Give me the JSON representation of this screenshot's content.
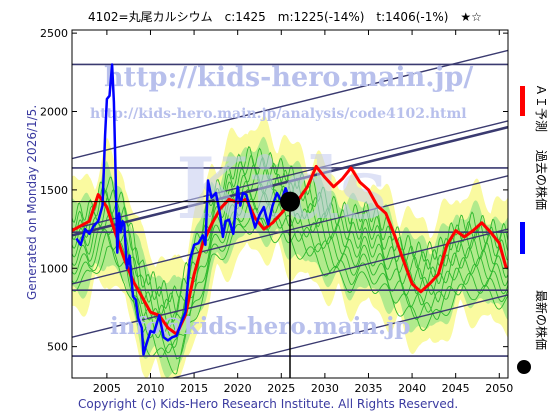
{
  "chart_data": {
    "type": "line",
    "title": "4102=丸尾カルシウム　c:1425　m:1225(-14%)　t:1406(-1%)　★☆",
    "xlim": [
      2001,
      2051
    ],
    "ylim": [
      300,
      2520
    ],
    "x_ticks": [
      2005,
      2010,
      2015,
      2020,
      2025,
      2030,
      2035,
      2040,
      2045,
      2050
    ],
    "y_ticks": [
      500,
      1000,
      1500,
      2000,
      2500
    ],
    "current_marker": {
      "x": 2026.0,
      "y": 1425
    },
    "series": [
      {
        "name": "AI予測",
        "color": "#ff0000",
        "points": [
          [
            2001,
            1240
          ],
          [
            2003,
            1300
          ],
          [
            2004,
            1470
          ],
          [
            2005,
            1390
          ],
          [
            2006,
            1220
          ],
          [
            2007,
            1060
          ],
          [
            2008,
            920
          ],
          [
            2009,
            820
          ],
          [
            2010,
            720
          ],
          [
            2011,
            700
          ],
          [
            2012,
            620
          ],
          [
            2013,
            580
          ],
          [
            2014,
            700
          ],
          [
            2015,
            960
          ],
          [
            2016,
            1160
          ],
          [
            2017,
            1280
          ],
          [
            2018,
            1380
          ],
          [
            2019,
            1440
          ],
          [
            2020,
            1420
          ],
          [
            2021,
            1440
          ],
          [
            2022,
            1320
          ],
          [
            2023,
            1250
          ],
          [
            2024,
            1290
          ],
          [
            2025,
            1350
          ],
          [
            2026,
            1420
          ],
          [
            2027,
            1440
          ],
          [
            2028,
            1520
          ],
          [
            2029,
            1650
          ],
          [
            2030,
            1580
          ],
          [
            2031,
            1520
          ],
          [
            2032,
            1570
          ],
          [
            2033,
            1640
          ],
          [
            2034,
            1550
          ],
          [
            2035,
            1500
          ],
          [
            2036,
            1400
          ],
          [
            2037,
            1350
          ],
          [
            2038,
            1210
          ],
          [
            2039,
            1050
          ],
          [
            2040,
            900
          ],
          [
            2041,
            850
          ],
          [
            2042,
            900
          ],
          [
            2043,
            960
          ],
          [
            2044,
            1150
          ],
          [
            2045,
            1240
          ],
          [
            2046,
            1200
          ],
          [
            2047,
            1240
          ],
          [
            2048,
            1290
          ],
          [
            2049,
            1230
          ],
          [
            2050,
            1160
          ],
          [
            2050.8,
            1000
          ]
        ]
      },
      {
        "name": "過去の株価",
        "color": "#0000ff",
        "points": [
          [
            2001.5,
            1190
          ],
          [
            2002,
            1150
          ],
          [
            2002.5,
            1250
          ],
          [
            2003,
            1220
          ],
          [
            2003.5,
            1270
          ],
          [
            2004,
            1300
          ],
          [
            2004.5,
            1400
          ],
          [
            2004.8,
            1850
          ],
          [
            2005,
            2080
          ],
          [
            2005.3,
            2100
          ],
          [
            2005.6,
            2300
          ],
          [
            2005.8,
            2060
          ],
          [
            2006,
            1600
          ],
          [
            2006.2,
            1100
          ],
          [
            2006.4,
            1350
          ],
          [
            2006.6,
            1230
          ],
          [
            2006.8,
            1300
          ],
          [
            2007,
            1280
          ],
          [
            2007.3,
            1000
          ],
          [
            2007.6,
            1080
          ],
          [
            2008,
            820
          ],
          [
            2008.3,
            800
          ],
          [
            2008.6,
            680
          ],
          [
            2009,
            620
          ],
          [
            2009.2,
            450
          ],
          [
            2009.5,
            510
          ],
          [
            2010,
            600
          ],
          [
            2010.4,
            590
          ],
          [
            2011,
            700
          ],
          [
            2011.5,
            560
          ],
          [
            2012,
            540
          ],
          [
            2012.5,
            560
          ],
          [
            2013,
            570
          ],
          [
            2013.5,
            650
          ],
          [
            2014,
            720
          ],
          [
            2014.5,
            1050
          ],
          [
            2015,
            1150
          ],
          [
            2015.5,
            1160
          ],
          [
            2016,
            1210
          ],
          [
            2016.3,
            1150
          ],
          [
            2016.6,
            1560
          ],
          [
            2017,
            1450
          ],
          [
            2017.5,
            1480
          ],
          [
            2018,
            1340
          ],
          [
            2018.3,
            1200
          ],
          [
            2018.6,
            1300
          ],
          [
            2019,
            1310
          ],
          [
            2019.5,
            1220
          ],
          [
            2020,
            1520
          ],
          [
            2020.3,
            1400
          ],
          [
            2020.6,
            1480
          ],
          [
            2021,
            1470
          ],
          [
            2021.5,
            1360
          ],
          [
            2022,
            1260
          ],
          [
            2022.5,
            1340
          ],
          [
            2023,
            1390
          ],
          [
            2023.5,
            1280
          ],
          [
            2024,
            1400
          ],
          [
            2024.5,
            1480
          ],
          [
            2025,
            1430
          ],
          [
            2025.5,
            1510
          ],
          [
            2026,
            1425
          ]
        ]
      }
    ],
    "band_center": [
      [
        2001,
        1130
      ],
      [
        2003,
        1150
      ],
      [
        2005,
        1340
      ],
      [
        2007,
        1180
      ],
      [
        2009,
        780
      ],
      [
        2011,
        660
      ],
      [
        2013,
        600
      ],
      [
        2015,
        900
      ],
      [
        2017,
        1240
      ],
      [
        2019,
        1380
      ],
      [
        2021,
        1500
      ],
      [
        2023,
        1480
      ],
      [
        2025,
        1420
      ],
      [
        2027,
        1340
      ],
      [
        2029,
        1280
      ],
      [
        2031,
        1180
      ],
      [
        2033,
        1120
      ],
      [
        2035,
        1150
      ],
      [
        2037,
        1060
      ],
      [
        2039,
        950
      ],
      [
        2041,
        880
      ],
      [
        2043,
        900
      ],
      [
        2045,
        1050
      ],
      [
        2047,
        1080
      ],
      [
        2049,
        1040
      ],
      [
        2050.8,
        1000
      ]
    ],
    "legend": [
      {
        "label": "ＡＩ予測",
        "color": "#ff0000"
      },
      {
        "label": "過去の株価",
        "color": "#0000ff"
      },
      {
        "label": "最新の株価",
        "color": "#000000"
      }
    ],
    "legend_placement": "right",
    "grid": true
  },
  "watermarks": {
    "url": "http://kids-hero.main.jp/",
    "analysis_url": "http://kids-hero.main.jp/analysis/code4102.html",
    "email": "info@kids-hero.main.jp",
    "logo": "Kids"
  },
  "footer": {
    "generated": "Generated on Monday 2026/1/5.",
    "copyright": "Copyright (c) Kids-Hero Research Institute. All Rights Reserved."
  },
  "colors": {
    "band_fill_green": "#a8e88a",
    "band_fill_yellow": "#fafaa0",
    "band_line": "#2fb82f",
    "trend_line": "#3a3a70",
    "frame": "#000000"
  }
}
